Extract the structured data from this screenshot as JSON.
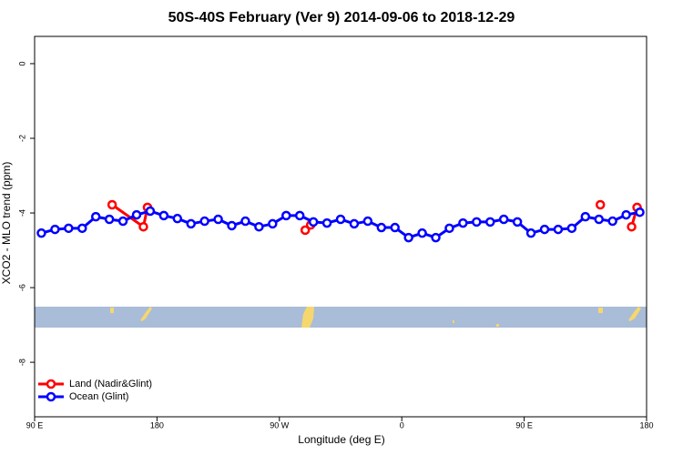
{
  "chart_data": {
    "type": "line",
    "title": "50S-40S February (Ver 9)   2014-09-06 to 2018-12-29",
    "x_label": "Longitude (deg E)",
    "y_label": "XCO2 - MLO trend (ppm)",
    "xlim": [
      90,
      540
    ],
    "xticks": [
      {
        "value": 90,
        "label": "90 E"
      },
      180,
      {
        "value": 270,
        "label": "90 W"
      },
      {
        "value": 360,
        "label": "0"
      },
      {
        "value": 450,
        "label": "90 E"
      },
      {
        "value": 540,
        "label": "180"
      }
    ],
    "ylim": [
      -9.46,
      0.73
    ],
    "yticks": [
      0,
      -2,
      -4,
      -6,
      -8
    ],
    "legend": "bottom-left",
    "series": [
      {
        "name": "Land (Nadir&Glint)",
        "color": "#ff0000",
        "x": [
          147,
          170,
          173,
          null,
          289,
          293,
          null,
          506,
          null,
          529,
          533
        ],
        "values": [
          -3.78,
          -4.37,
          -3.85,
          null,
          -4.46,
          -4.32,
          null,
          -3.78,
          null,
          -4.37,
          -3.85
        ]
      },
      {
        "name": "Ocean (Glint)",
        "color": "#0000ff",
        "x": [
          95,
          105,
          115,
          125,
          135,
          145,
          155,
          165,
          175,
          185,
          195,
          205,
          215,
          225,
          235,
          245,
          255,
          265,
          275,
          285,
          295,
          305,
          315,
          325,
          335,
          345,
          355,
          365,
          375,
          385,
          395,
          405,
          415,
          425,
          435,
          445,
          455,
          465,
          475,
          485,
          495,
          505,
          515,
          525,
          535
        ],
        "values": [
          -4.54,
          -4.44,
          -4.41,
          -4.41,
          -4.1,
          -4.17,
          -4.22,
          -4.05,
          -3.95,
          -4.07,
          -4.15,
          -4.29,
          -4.22,
          -4.17,
          -4.34,
          -4.22,
          -4.37,
          -4.29,
          -4.07,
          -4.07,
          -4.24,
          -4.27,
          -4.17,
          -4.29,
          -4.22,
          -4.39,
          -4.39,
          -4.66,
          -4.54,
          -4.66,
          -4.41,
          -4.27,
          -4.24,
          -4.24,
          -4.17,
          -4.24,
          -4.54,
          -4.44,
          -4.44,
          -4.41,
          -4.1,
          -4.17,
          -4.22,
          -4.05,
          -3.98
        ]
      }
    ]
  }
}
